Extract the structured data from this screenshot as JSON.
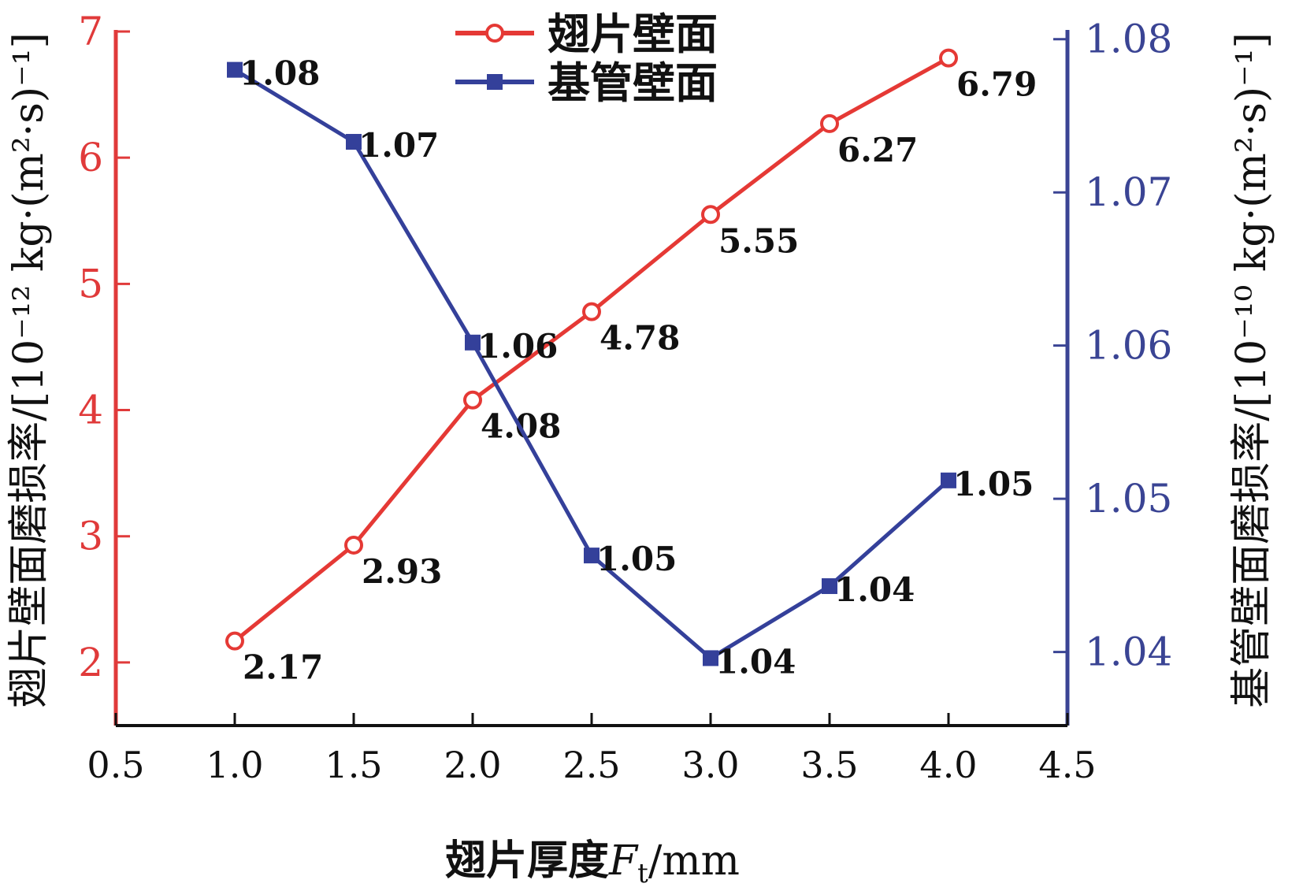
{
  "chart_data": {
    "type": "line",
    "title": "",
    "x": [
      1.0,
      1.5,
      2.0,
      2.5,
      3.0,
      3.5,
      4.0
    ],
    "xlabel": "翅片厚度F<sub>t</sub>/mm",
    "xlabel_parts": {
      "main": "翅片厚度",
      "var": "F",
      "sub": "t",
      "unit": "/mm"
    },
    "xlim": [
      0.5,
      4.5
    ],
    "x_ticks": [
      "0.5",
      "1.0",
      "1.5",
      "2.0",
      "2.5",
      "3.0",
      "3.5",
      "4.0",
      "4.5"
    ],
    "y_left": {
      "label": "翅片壁面磨损率/[10⁻¹² kg·(m²·s)⁻¹]",
      "ylim": [
        1.5,
        7
      ],
      "ticks": [
        "2",
        "3",
        "4",
        "5",
        "6",
        "7"
      ],
      "color": "#e03a3a"
    },
    "y_right": {
      "label": "基管壁面磨损率/[10⁻¹⁰ kg·(m²·s)⁻¹]",
      "ylim": [
        1.0352,
        1.0805
      ],
      "ticks": [
        "1.04",
        "1.05",
        "1.06",
        "1.07",
        "1.08"
      ],
      "color": "#3a4494"
    },
    "series": [
      {
        "name": "翅片壁面",
        "axis": "left",
        "color": "#e53935",
        "marker": "circle",
        "values": [
          2.17,
          2.93,
          4.08,
          4.78,
          5.55,
          6.27,
          6.79
        ],
        "labels": [
          "2.17",
          "2.93",
          "4.08",
          "4.78",
          "5.55",
          "6.27",
          "6.79"
        ]
      },
      {
        "name": "基管壁面",
        "axis": "right",
        "color": "#34409a",
        "marker": "square",
        "values": [
          1.078,
          1.0733,
          1.0602,
          1.0463,
          1.0396,
          1.0443,
          1.0512
        ],
        "labels": [
          "1.08",
          "1.07",
          "1.06",
          "1.05",
          "1.04",
          "1.04",
          "1.05"
        ]
      }
    ],
    "legend": "top-center",
    "grid": false
  }
}
